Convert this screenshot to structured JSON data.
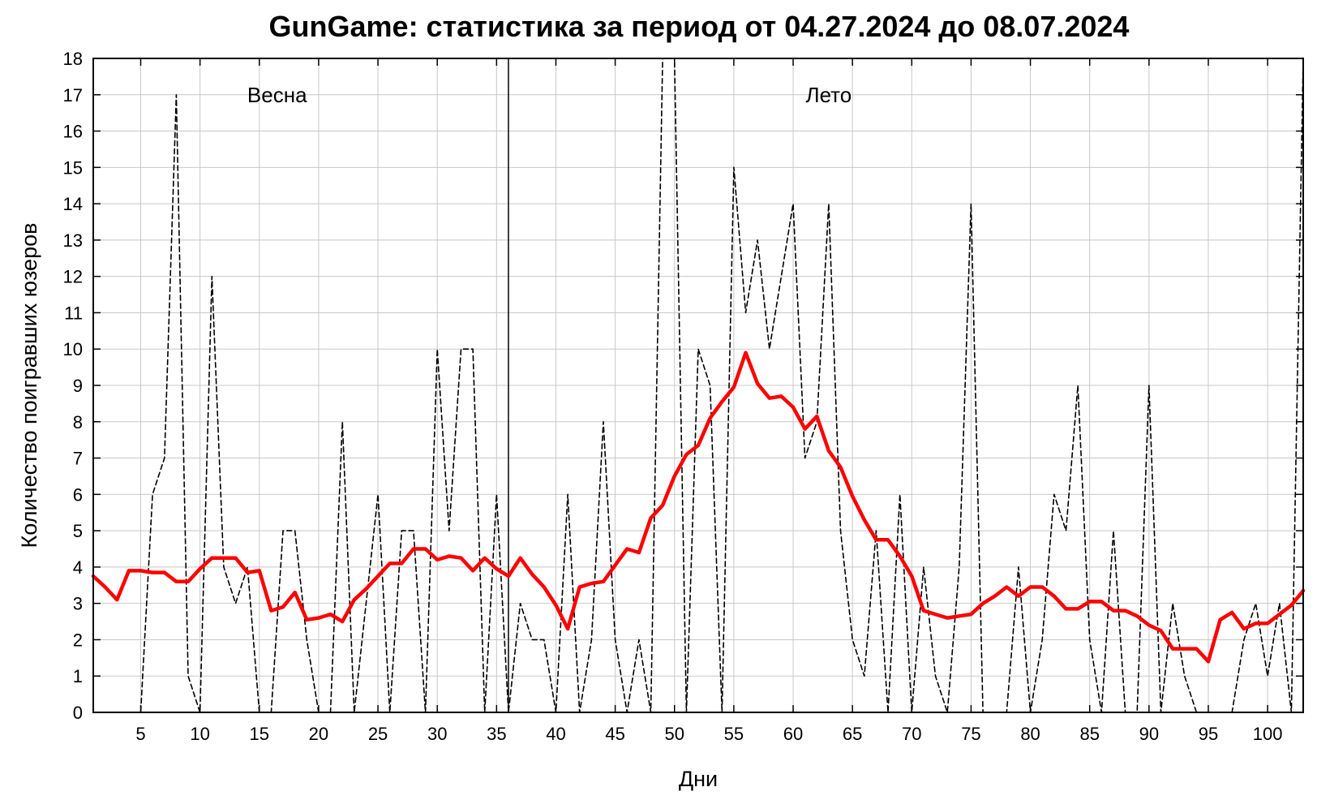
{
  "chart_data": {
    "type": "line",
    "title": "GunGame: статистика за период от 04.27.2024 до 08.07.2024",
    "xlabel": "Дни",
    "ylabel": "Количество поигравших юзеров",
    "xlim": [
      1,
      103
    ],
    "ylim": [
      0,
      18
    ],
    "x_ticks": [
      5,
      10,
      15,
      20,
      25,
      30,
      35,
      40,
      45,
      50,
      55,
      60,
      65,
      70,
      75,
      80,
      85,
      90,
      95,
      100
    ],
    "y_ticks": [
      0,
      1,
      2,
      3,
      4,
      5,
      6,
      7,
      8,
      9,
      10,
      11,
      12,
      13,
      14,
      15,
      16,
      17,
      18
    ],
    "grid": true,
    "divider_x": 36,
    "annotations": [
      {
        "text": "Весна",
        "x": 16.5,
        "y": 17
      },
      {
        "text": "Лето",
        "x": 63,
        "y": 17
      }
    ],
    "series": [
      {
        "style": "dashed",
        "color": "#000000",
        "x": [
          1,
          2,
          3,
          4,
          5,
          6,
          7,
          8,
          9,
          10,
          11,
          12,
          13,
          14,
          15,
          16,
          17,
          18,
          19,
          20,
          21,
          22,
          23,
          24,
          25,
          26,
          27,
          28,
          29,
          30,
          31,
          32,
          33,
          34,
          35,
          36,
          37,
          38,
          39,
          40,
          41,
          42,
          43,
          44,
          45,
          46,
          47,
          48,
          49,
          50,
          51,
          52,
          53,
          54,
          55,
          56,
          57,
          58,
          59,
          60,
          61,
          62,
          63,
          64,
          65,
          66,
          67,
          68,
          69,
          70,
          71,
          72,
          73,
          74,
          75,
          76,
          77,
          78,
          79,
          80,
          81,
          82,
          83,
          84,
          85,
          86,
          87,
          88,
          89,
          90,
          91,
          92,
          93,
          94,
          95,
          96,
          97,
          98,
          99,
          100,
          101,
          102,
          103
        ],
        "values": [
          0,
          0,
          0,
          0,
          0,
          6,
          7,
          17,
          1,
          0,
          12,
          4,
          3,
          4,
          0,
          0,
          5,
          5,
          2,
          0,
          0,
          8,
          0,
          3,
          6,
          0,
          5,
          5,
          0,
          10,
          5,
          10,
          10,
          0,
          6,
          0,
          3,
          2,
          2,
          0,
          6,
          0,
          2,
          8,
          2,
          0,
          2,
          0,
          18,
          18,
          0,
          10,
          9,
          0,
          15,
          11,
          13,
          10,
          12,
          14,
          7,
          8,
          14,
          5,
          2,
          1,
          5,
          0,
          6,
          0,
          4,
          1,
          0,
          4,
          14,
          0,
          0,
          0,
          4,
          0,
          2,
          6,
          5,
          9,
          2,
          0,
          5,
          0,
          0,
          9,
          0,
          3,
          1,
          0,
          0,
          0,
          0,
          2,
          3,
          1,
          3,
          0,
          18
        ]
      },
      {
        "style": "solid",
        "color": "#ff0000",
        "x": [
          1,
          2,
          3,
          4,
          5,
          6,
          7,
          8,
          9,
          10,
          11,
          12,
          13,
          14,
          15,
          16,
          17,
          18,
          19,
          20,
          21,
          22,
          23,
          24,
          25,
          26,
          27,
          28,
          29,
          30,
          31,
          32,
          33,
          34,
          35,
          36,
          37,
          38,
          39,
          40,
          41,
          42,
          43,
          44,
          45,
          46,
          47,
          48,
          49,
          50,
          51,
          52,
          53,
          54,
          55,
          56,
          57,
          58,
          59,
          60,
          61,
          62,
          63,
          64,
          65,
          66,
          67,
          68,
          69,
          70,
          71,
          72,
          73,
          74,
          75,
          76,
          77,
          78,
          79,
          80,
          81,
          82,
          83,
          84,
          85,
          86,
          87,
          88,
          89,
          90,
          91,
          92,
          93,
          94,
          95,
          96,
          97,
          98,
          99,
          100,
          101,
          102,
          103
        ],
        "values": [
          3.75,
          3.45,
          3.1,
          3.9,
          3.9,
          3.85,
          3.85,
          3.6,
          3.6,
          3.95,
          4.25,
          4.25,
          4.25,
          3.85,
          3.9,
          2.8,
          2.9,
          3.3,
          2.55,
          2.6,
          2.7,
          2.5,
          3.1,
          3.4,
          3.75,
          4.1,
          4.1,
          4.5,
          4.5,
          4.2,
          4.3,
          4.25,
          3.9,
          4.25,
          3.95,
          3.75,
          4.25,
          3.8,
          3.45,
          2.95,
          2.3,
          3.45,
          3.55,
          3.6,
          4.05,
          4.5,
          4.4,
          5.35,
          5.7,
          6.5,
          7.1,
          7.35,
          8.1,
          8.55,
          8.95,
          9.9,
          9.05,
          8.65,
          8.7,
          8.4,
          7.8,
          8.15,
          7.2,
          6.75,
          5.95,
          5.3,
          4.75,
          4.75,
          4.3,
          3.75,
          2.8,
          2.7,
          2.6,
          2.65,
          2.7,
          3.0,
          3.2,
          3.45,
          3.2,
          3.45,
          3.45,
          3.2,
          2.85,
          2.85,
          3.05,
          3.05,
          2.8,
          2.8,
          2.65,
          2.4,
          2.25,
          1.75,
          1.75,
          1.75,
          1.4,
          2.55,
          2.75,
          2.3,
          2.45,
          2.45,
          2.7,
          2.95,
          3.35
        ]
      }
    ]
  }
}
